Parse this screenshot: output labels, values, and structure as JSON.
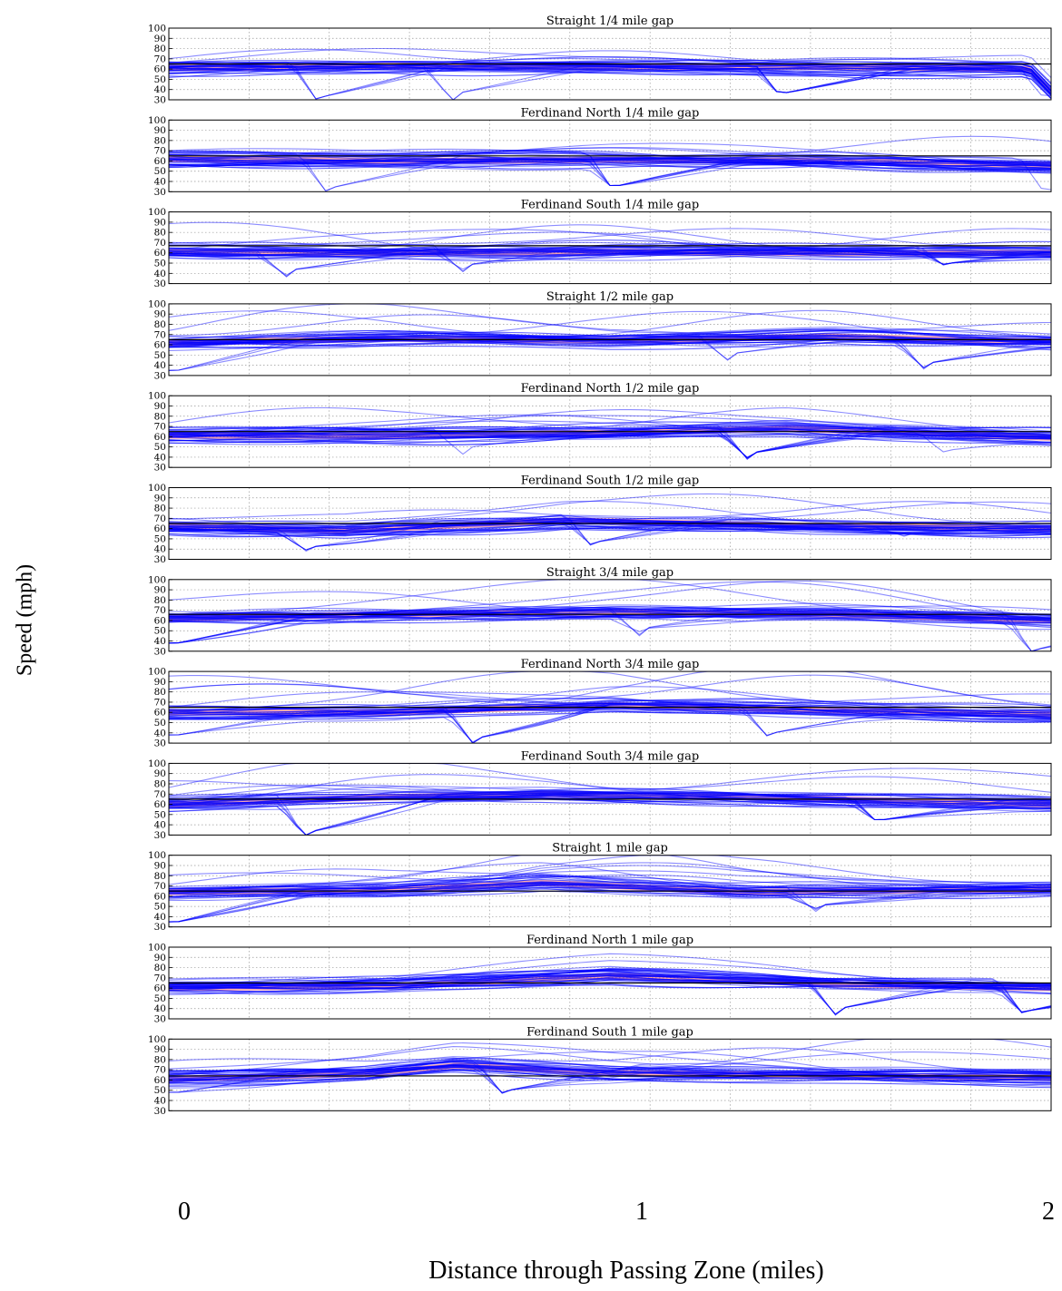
{
  "figure": {
    "ylabel": "Speed (mph)",
    "xlabel": "Distance through Passing Zone (miles)",
    "xticks": [
      "0",
      "1",
      "2"
    ]
  },
  "colors": {
    "traces": "#0000ff",
    "band": "#ff4c4c",
    "reference": "#000000",
    "grid": "#999999"
  },
  "chart_data": [
    {
      "type": "line",
      "title": "Straight 1/4 mile gap",
      "ylim": [
        30,
        100
      ],
      "yticks": [
        100,
        90,
        80,
        70,
        60,
        50,
        40,
        30
      ],
      "xlim": [
        0,
        2
      ],
      "grid": true,
      "reference_speed": 65,
      "mean_speed": 61,
      "band": [
        [
          0.0,
          61
        ],
        [
          0.5,
          63
        ],
        [
          1.0,
          62
        ],
        [
          1.5,
          62
        ],
        [
          1.95,
          60
        ],
        [
          2.0,
          38
        ]
      ],
      "dips": [
        [
          0.33,
          33
        ],
        [
          0.63,
          36
        ],
        [
          1.38,
          37
        ],
        [
          1.98,
          34
        ]
      ],
      "peak_speed": 72
    },
    {
      "type": "line",
      "title": "Ferdinand North 1/4 mile gap",
      "ylim": [
        30,
        100
      ],
      "yticks": [
        100,
        90,
        80,
        70,
        60,
        50,
        40,
        30
      ],
      "xlim": [
        0,
        2
      ],
      "grid": true,
      "reference_speed": 65,
      "mean_speed": 61,
      "band": [
        [
          0.0,
          62
        ],
        [
          0.5,
          60
        ],
        [
          1.0,
          61
        ],
        [
          1.5,
          60
        ],
        [
          2.0,
          56
        ]
      ],
      "dips": [
        [
          0.35,
          34
        ],
        [
          0.68,
          45
        ],
        [
          1.0,
          36
        ],
        [
          1.98,
          32
        ]
      ],
      "peak_speed": 82
    },
    {
      "type": "line",
      "title": "Ferdinand South 1/4 mile gap",
      "ylim": [
        30,
        100
      ],
      "yticks": [
        100,
        90,
        80,
        70,
        60,
        50,
        40,
        30
      ],
      "xlim": [
        0,
        2
      ],
      "grid": true,
      "reference_speed": 67,
      "mean_speed": 60,
      "band": [
        [
          0.0,
          61
        ],
        [
          0.5,
          60
        ],
        [
          1.0,
          61
        ],
        [
          1.5,
          60
        ],
        [
          2.0,
          60
        ]
      ],
      "dips": [
        [
          0.25,
          43
        ],
        [
          0.65,
          48
        ],
        [
          1.75,
          50
        ]
      ],
      "peak_speed": 93
    },
    {
      "type": "line",
      "title": "Straight 1/2 mile gap",
      "ylim": [
        30,
        100
      ],
      "yticks": [
        100,
        90,
        80,
        70,
        60,
        50,
        40,
        30
      ],
      "xlim": [
        0,
        2
      ],
      "grid": true,
      "reference_speed": 65,
      "mean_speed": 63,
      "band": [
        [
          0.0,
          62
        ],
        [
          0.5,
          66
        ],
        [
          1.0,
          64
        ],
        [
          1.5,
          68
        ],
        [
          2.0,
          63
        ]
      ],
      "dips": [
        [
          0.0,
          35
        ],
        [
          0.8,
          50
        ],
        [
          1.25,
          51
        ],
        [
          1.7,
          42
        ]
      ],
      "peak_speed": 95
    },
    {
      "type": "line",
      "title": "Ferdinand North 1/2 mile gap",
      "ylim": [
        30,
        100
      ],
      "yticks": [
        100,
        90,
        80,
        70,
        60,
        50,
        40,
        30
      ],
      "xlim": [
        0,
        2
      ],
      "grid": true,
      "reference_speed": 65,
      "mean_speed": 61,
      "band": [
        [
          0.0,
          61
        ],
        [
          0.5,
          61
        ],
        [
          1.0,
          64
        ],
        [
          1.4,
          68
        ],
        [
          2.0,
          59
        ]
      ],
      "dips": [
        [
          0.65,
          49
        ],
        [
          1.3,
          44
        ],
        [
          1.75,
          47
        ]
      ],
      "peak_speed": 97
    },
    {
      "type": "line",
      "title": "Ferdinand South 1/2 mile gap",
      "ylim": [
        30,
        100
      ],
      "yticks": [
        100,
        90,
        80,
        70,
        60,
        50,
        40,
        30
      ],
      "xlim": [
        0,
        2
      ],
      "grid": true,
      "reference_speed": 65,
      "mean_speed": 62,
      "band": [
        [
          0.0,
          62
        ],
        [
          0.4,
          58
        ],
        [
          0.9,
          68
        ],
        [
          1.4,
          63
        ],
        [
          2.0,
          60
        ]
      ],
      "dips": [
        [
          0.3,
          42
        ],
        [
          0.95,
          47
        ],
        [
          1.65,
          55
        ]
      ],
      "peak_speed": 96
    },
    {
      "type": "line",
      "title": "Straight 3/4 mile gap",
      "ylim": [
        30,
        100
      ],
      "yticks": [
        100,
        90,
        80,
        70,
        60,
        50,
        40,
        30
      ],
      "xlim": [
        0,
        2
      ],
      "grid": true,
      "reference_speed": 66,
      "mean_speed": 63,
      "band": [
        [
          0.0,
          62
        ],
        [
          0.5,
          66
        ],
        [
          1.0,
          68
        ],
        [
          1.5,
          66
        ],
        [
          2.0,
          60
        ]
      ],
      "dips": [
        [
          0.0,
          38
        ],
        [
          1.05,
          52
        ],
        [
          1.95,
          32
        ]
      ],
      "peak_speed": 99
    },
    {
      "type": "line",
      "title": "Ferdinand North 3/4 mile gap",
      "ylim": [
        30,
        100
      ],
      "yticks": [
        100,
        90,
        80,
        70,
        60,
        50,
        40,
        30
      ],
      "xlim": [
        0,
        2
      ],
      "grid": true,
      "reference_speed": 65,
      "mean_speed": 60,
      "band": [
        [
          0.0,
          60
        ],
        [
          0.5,
          60
        ],
        [
          1.0,
          67
        ],
        [
          1.5,
          62
        ],
        [
          2.0,
          58
        ]
      ],
      "dips": [
        [
          0.0,
          38
        ],
        [
          0.68,
          35
        ],
        [
          1.35,
          40
        ]
      ],
      "peak_speed": 96
    },
    {
      "type": "line",
      "title": "Ferdinand South 3/4 mile gap",
      "ylim": [
        30,
        100
      ],
      "yticks": [
        100,
        90,
        80,
        70,
        60,
        50,
        40,
        30
      ],
      "xlim": [
        0,
        2
      ],
      "grid": true,
      "reference_speed": 65,
      "mean_speed": 61,
      "band": [
        [
          0.0,
          60
        ],
        [
          0.5,
          67
        ],
        [
          0.85,
          70
        ],
        [
          1.3,
          67
        ],
        [
          2.0,
          60
        ]
      ],
      "dips": [
        [
          0.3,
          33
        ],
        [
          1.6,
          45
        ]
      ],
      "peak_speed": 99
    },
    {
      "type": "line",
      "title": "Straight 1 mile gap",
      "ylim": [
        30,
        100
      ],
      "yticks": [
        100,
        90,
        80,
        70,
        60,
        50,
        40,
        30
      ],
      "xlim": [
        0,
        2
      ],
      "grid": true,
      "reference_speed": 65,
      "mean_speed": 64,
      "band": [
        [
          0.0,
          64
        ],
        [
          0.5,
          66
        ],
        [
          0.85,
          73
        ],
        [
          1.3,
          64
        ],
        [
          2.0,
          67
        ]
      ],
      "dips": [
        [
          0.0,
          35
        ],
        [
          1.45,
          51
        ]
      ],
      "peak_speed": 97
    },
    {
      "type": "line",
      "title": "Ferdinand North 1 mile gap",
      "ylim": [
        30,
        100
      ],
      "yticks": [
        100,
        90,
        80,
        70,
        60,
        50,
        40,
        30
      ],
      "xlim": [
        0,
        2
      ],
      "grid": true,
      "reference_speed": 65,
      "mean_speed": 60,
      "band": [
        [
          0.0,
          60
        ],
        [
          0.5,
          62
        ],
        [
          1.0,
          72
        ],
        [
          1.5,
          64
        ],
        [
          2.0,
          60
        ]
      ],
      "dips": [
        [
          1.5,
          40
        ],
        [
          1.93,
          38
        ]
      ],
      "peak_speed": 99
    },
    {
      "type": "line",
      "title": "Ferdinand South 1 mile gap",
      "ylim": [
        30,
        100
      ],
      "yticks": [
        100,
        90,
        80,
        70,
        60,
        50,
        40,
        30
      ],
      "xlim": [
        0,
        2
      ],
      "grid": true,
      "reference_speed": 64,
      "mean_speed": 61,
      "band": [
        [
          0.0,
          61
        ],
        [
          0.45,
          66
        ],
        [
          0.65,
          74
        ],
        [
          1.0,
          67
        ],
        [
          2.0,
          62
        ]
      ],
      "dips": [
        [
          0.0,
          48
        ],
        [
          0.75,
          50
        ]
      ],
      "peak_speed": 97
    }
  ]
}
